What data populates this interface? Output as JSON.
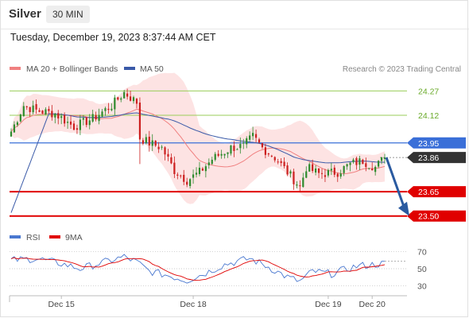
{
  "header": {
    "instrument": "Silver",
    "interval": "30 MIN",
    "datetime": "Tuesday, December 19, 2023 8:37:44 AM CET"
  },
  "legend": {
    "ma20_label": "MA 20 + Bollinger Bands",
    "ma50_label": "MA 50",
    "source": "Research © 2023 Trading Central",
    "rsi_label": "RSI",
    "rsi_ma_label": "9MA"
  },
  "colors": {
    "ma20": "#f08080",
    "ma50": "#3a5aa8",
    "bollinger_fill": "#fde3e3",
    "candle_up": "#2e8b2e",
    "candle_down": "#cc1f1f",
    "resistance": "#9acd5a",
    "pivot": "#3a6fd8",
    "support": "#e00000",
    "current": "#333333",
    "arrow": "#2a5aa0"
  },
  "chart_data": [
    {
      "type": "candlestick",
      "xlabel": "",
      "ylabel": "",
      "ylim": [
        23.44,
        24.35
      ],
      "x_ticks": [
        "Dec 15",
        "Dec 18",
        "Dec 19",
        "Dec 20"
      ],
      "levels": [
        {
          "value": 24.27,
          "label": "24.27",
          "kind": "resistance"
        },
        {
          "value": 24.12,
          "label": "24.12",
          "kind": "resistance"
        },
        {
          "value": 23.95,
          "label": "23.95",
          "kind": "pivot"
        },
        {
          "value": 23.86,
          "label": "23.86",
          "kind": "current"
        },
        {
          "value": 23.65,
          "label": "23.65",
          "kind": "support"
        },
        {
          "value": 23.5,
          "label": "23.50",
          "kind": "support"
        }
      ],
      "series": [
        {
          "name": "MA 20 + Bollinger Bands",
          "kind": "ma20"
        },
        {
          "name": "MA 50",
          "kind": "ma50"
        }
      ],
      "keypoints": [
        {
          "i": 0,
          "p": 24.02
        },
        {
          "i": 4,
          "p": 24.18
        },
        {
          "i": 8,
          "p": 24.15
        },
        {
          "i": 14,
          "p": 24.13
        },
        {
          "i": 20,
          "p": 24.05
        },
        {
          "i": 26,
          "p": 24.1
        },
        {
          "i": 32,
          "p": 24.18
        },
        {
          "i": 36,
          "p": 24.26
        },
        {
          "i": 40,
          "p": 24.2
        },
        {
          "i": 41,
          "p": 23.98
        },
        {
          "i": 44,
          "p": 23.95
        },
        {
          "i": 48,
          "p": 23.92
        },
        {
          "i": 52,
          "p": 23.78
        },
        {
          "i": 56,
          "p": 23.72
        },
        {
          "i": 60,
          "p": 23.77
        },
        {
          "i": 64,
          "p": 23.85
        },
        {
          "i": 70,
          "p": 23.92
        },
        {
          "i": 74,
          "p": 23.93
        },
        {
          "i": 77,
          "p": 23.99
        },
        {
          "i": 80,
          "p": 23.92
        },
        {
          "i": 84,
          "p": 23.86
        },
        {
          "i": 88,
          "p": 23.77
        },
        {
          "i": 92,
          "p": 23.68
        },
        {
          "i": 94,
          "p": 23.8
        },
        {
          "i": 98,
          "p": 23.76
        },
        {
          "i": 104,
          "p": 23.77
        },
        {
          "i": 108,
          "p": 23.82
        },
        {
          "i": 112,
          "p": 23.84
        },
        {
          "i": 116,
          "p": 23.8
        },
        {
          "i": 119,
          "p": 23.86
        }
      ],
      "forecast": {
        "from": 23.86,
        "to": 23.5
      }
    },
    {
      "type": "line",
      "xlabel": "",
      "ylabel": "",
      "ylim": [
        20,
        80
      ],
      "y_ticks": [
        70,
        50,
        30
      ],
      "series": [
        {
          "name": "RSI",
          "kind": "rsi"
        },
        {
          "name": "9MA",
          "kind": "rsi_ma"
        }
      ],
      "keypoints": [
        {
          "i": 0,
          "v": 60
        },
        {
          "i": 8,
          "v": 62
        },
        {
          "i": 16,
          "v": 56
        },
        {
          "i": 22,
          "v": 50
        },
        {
          "i": 30,
          "v": 58
        },
        {
          "i": 36,
          "v": 64
        },
        {
          "i": 40,
          "v": 58
        },
        {
          "i": 44,
          "v": 47
        },
        {
          "i": 50,
          "v": 42
        },
        {
          "i": 56,
          "v": 36
        },
        {
          "i": 62,
          "v": 45
        },
        {
          "i": 68,
          "v": 55
        },
        {
          "i": 76,
          "v": 62
        },
        {
          "i": 82,
          "v": 52
        },
        {
          "i": 88,
          "v": 40
        },
        {
          "i": 92,
          "v": 35
        },
        {
          "i": 96,
          "v": 47
        },
        {
          "i": 102,
          "v": 44
        },
        {
          "i": 110,
          "v": 53
        },
        {
          "i": 119,
          "v": 56
        }
      ]
    }
  ]
}
